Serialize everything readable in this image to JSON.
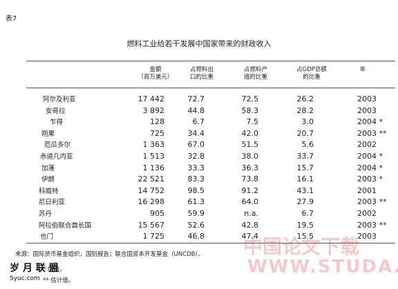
{
  "header": {
    "label": "表7",
    "caption": "燃料工业给若干发展中国家带来的财政收入"
  },
  "table": {
    "columns": [
      [
        "金额",
        "（百万美元）"
      ],
      [
        "占燃料出",
        "口的比重"
      ],
      [
        "占燃料产",
        "值的比重"
      ],
      [
        "占GDP总额",
        "的比重"
      ],
      [
        "年"
      ]
    ],
    "rows": [
      [
        "阿尔及利亚",
        "17 442",
        "72.7",
        "72.5",
        "26.2",
        "2003"
      ],
      [
        "安哥拉",
        "3 892",
        "44.8",
        "58.3",
        "28.2",
        "2003"
      ],
      [
        "乍得",
        "128",
        "6.7",
        "7.5",
        "3.0",
        "2004 *"
      ],
      [
        "刚果",
        "725",
        "34.4",
        "42.0",
        "20.7",
        "2003 **"
      ],
      [
        "厄瓜多尔",
        "1 363",
        "67.0",
        "51.5",
        "5.6",
        "2002"
      ],
      [
        "赤道几内亚",
        "1 513",
        "32.8",
        "38.0",
        "33.7",
        "2004 *"
      ],
      [
        "加蓬",
        "1 136",
        "33.3",
        "36.3",
        "15.7",
        "2004 *"
      ],
      [
        "伊朗",
        "22 521",
        "83.3",
        "73.8",
        "16.1",
        "2003 *"
      ],
      [
        "科威特",
        "14 752",
        "98.5",
        "91.2",
        "43.1",
        "2001"
      ],
      [
        "尼日利亚",
        "16 298",
        "61.3",
        "64.0",
        "27.9",
        "2003 **"
      ],
      [
        "苏丹",
        "905",
        "59.9",
        "n.a.",
        "6.7",
        "2002"
      ],
      [
        "阿拉伯联合酋长国",
        "15 567",
        "52.6",
        "42.8",
        "19.5",
        "2003 **"
      ],
      [
        "也门",
        "1 725",
        "46.8",
        "47.4",
        "15.5",
        "2003"
      ]
    ]
  },
  "footnotes": [
    "来源：国际货币基金组织，国别报告；联合国资本开发基金（UNCDB）。",
    "* 估值。",
    "** 估计值。"
  ],
  "watermarks": [
    "中国论文下载",
    "WWW.STUDA.",
    "岁 月 联 盟",
    "5yuc.com"
  ]
}
